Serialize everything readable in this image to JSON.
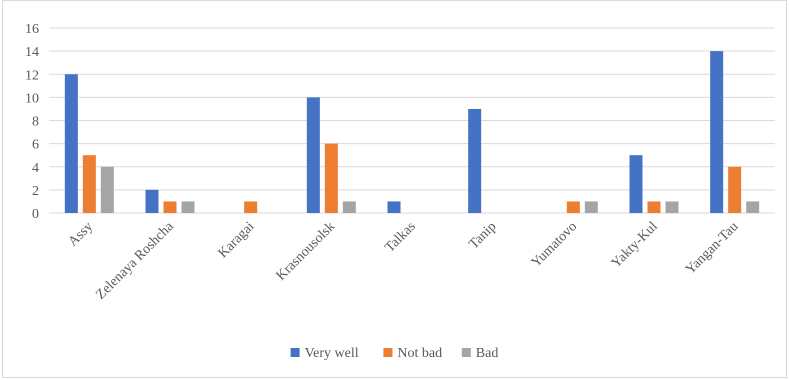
{
  "chart_data": {
    "type": "bar",
    "title": "",
    "xlabel": "",
    "ylabel": "",
    "ylim": [
      0,
      16
    ],
    "yticks": [
      0,
      2,
      4,
      6,
      8,
      10,
      12,
      14,
      16
    ],
    "grid": true,
    "legend_position": "bottom",
    "categories": [
      "Assy",
      "Zelenaya Roshcha",
      "Karagai",
      "Krasnousolsk",
      "Talkas",
      "Tanip",
      "Yumatovo",
      "Yakty-Kul",
      "Yangan-Tau"
    ],
    "series": [
      {
        "name": "Very well",
        "color": "#4472c4",
        "values": [
          12,
          2,
          0,
          10,
          1,
          9,
          0,
          5,
          14
        ]
      },
      {
        "name": "Not bad",
        "color": "#ed7d31",
        "values": [
          5,
          1,
          1,
          6,
          0,
          0,
          1,
          1,
          4
        ]
      },
      {
        "name": "Bad",
        "color": "#a5a5a5",
        "values": [
          4,
          1,
          0,
          1,
          0,
          0,
          1,
          1,
          1
        ]
      }
    ]
  }
}
